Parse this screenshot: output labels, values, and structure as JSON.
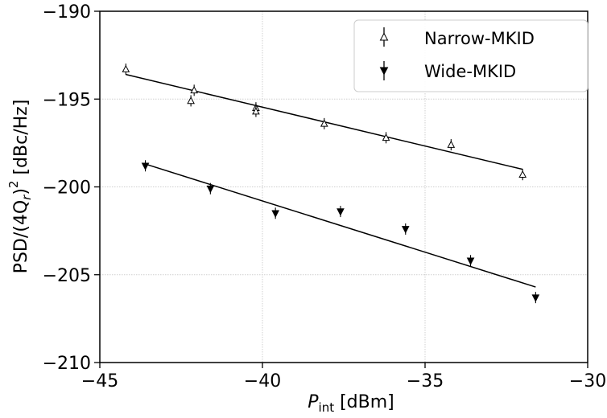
{
  "chart_data": {
    "type": "scatter",
    "xlim": [
      -45,
      -30
    ],
    "ylim": [
      -210,
      -190
    ],
    "xticks": [
      -45,
      -40,
      -35,
      -30
    ],
    "yticks": [
      -210,
      -205,
      -200,
      -195,
      -190
    ],
    "xtick_labels": [
      "−45",
      "−40",
      "−35",
      "−30"
    ],
    "ytick_labels": [
      "−210",
      "−205",
      "−200",
      "−195",
      "−190"
    ],
    "xlabel": {
      "main": "P",
      "sub": "int",
      "unit": " [dBm]"
    },
    "ylabel": {
      "pre": "PSD/(4Q",
      "sub": "r",
      "post": ")",
      "sup": "2",
      "unit": " [dBc/Hz]"
    },
    "grid": true,
    "legend_position": "top-right",
    "series": [
      {
        "name": "Narrow-MKID",
        "marker": "open-triangle-up",
        "color": "#000000",
        "x": [
          -44.2,
          -42.1,
          -42.2,
          -40.2,
          -40.2,
          -38.1,
          -36.2,
          -34.2,
          -32.0
        ],
        "y": [
          -193.3,
          -194.5,
          -195.1,
          -195.5,
          -195.7,
          -196.4,
          -197.2,
          -197.6,
          -199.3
        ],
        "fit": {
          "x": [
            -44.2,
            -32.0
          ],
          "y": [
            -193.6,
            -199.0
          ]
        }
      },
      {
        "name": "Wide-MKID",
        "marker": "filled-triangle-down",
        "color": "#000000",
        "x": [
          -43.6,
          -41.6,
          -39.6,
          -37.6,
          -35.6,
          -33.6,
          -31.6
        ],
        "y": [
          -198.8,
          -200.1,
          -201.5,
          -201.4,
          -202.4,
          -204.2,
          -206.3
        ],
        "fit": {
          "x": [
            -43.6,
            -31.6
          ],
          "y": [
            -198.7,
            -205.7
          ]
        }
      }
    ]
  }
}
